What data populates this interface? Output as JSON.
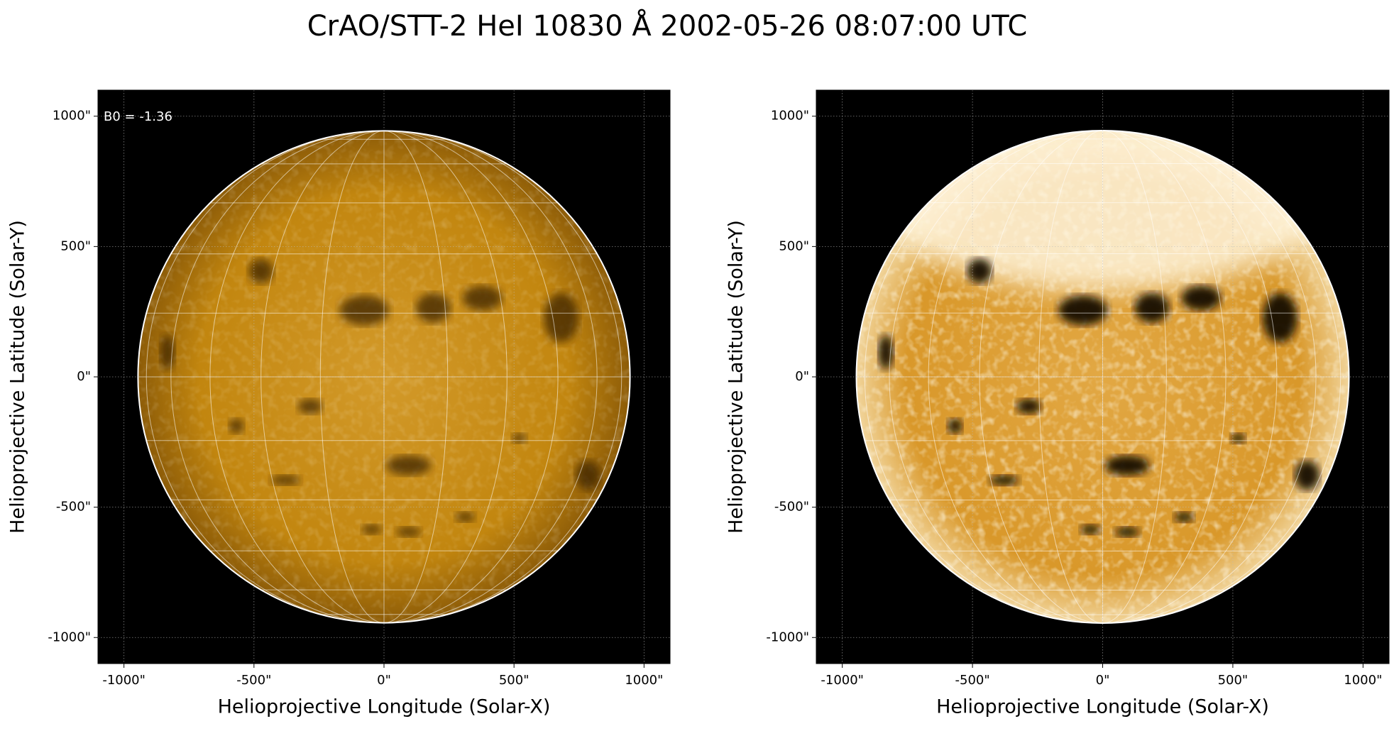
{
  "title": "CrAO/STT-2 HeI 10830 Å 2002-05-26 08:07:00 UTC",
  "chart_data": [
    {
      "type": "image",
      "xlabel": "Helioprojective Longitude (Solar-X)",
      "ylabel": "Helioprojective Latitude (Solar-Y)",
      "annotation": "B0 = -1.36",
      "xlim": [
        -1100,
        1100
      ],
      "ylim": [
        -1100,
        1100
      ],
      "xticks": [
        {
          "value": -1000,
          "label": "-1000\""
        },
        {
          "value": -500,
          "label": "-500\""
        },
        {
          "value": 0,
          "label": "0\""
        },
        {
          "value": 500,
          "label": "500\""
        },
        {
          "value": 1000,
          "label": "1000\""
        }
      ],
      "yticks": [
        {
          "value": -1000,
          "label": "-1000\""
        },
        {
          "value": -500,
          "label": "-500\""
        },
        {
          "value": 0,
          "label": "0\""
        },
        {
          "value": 500,
          "label": "500\""
        },
        {
          "value": 1000,
          "label": "1000\""
        }
      ],
      "grid": true
    },
    {
      "type": "image",
      "xlabel": "Helioprojective Longitude (Solar-X)",
      "ylabel": "Helioprojective Latitude (Solar-Y)",
      "xlim": [
        -1100,
        1100
      ],
      "ylim": [
        -1100,
        1100
      ],
      "xticks": [
        {
          "value": -1000,
          "label": "-1000\""
        },
        {
          "value": -500,
          "label": "-500\""
        },
        {
          "value": 0,
          "label": "0\""
        },
        {
          "value": 500,
          "label": "500\""
        },
        {
          "value": 1000,
          "label": "1000\""
        }
      ],
      "yticks": [
        {
          "value": -1000,
          "label": "-1000\""
        },
        {
          "value": -500,
          "label": "-500\""
        },
        {
          "value": 0,
          "label": "0\""
        },
        {
          "value": 500,
          "label": "500\""
        },
        {
          "value": 1000,
          "label": "1000\""
        }
      ],
      "grid": true
    }
  ]
}
